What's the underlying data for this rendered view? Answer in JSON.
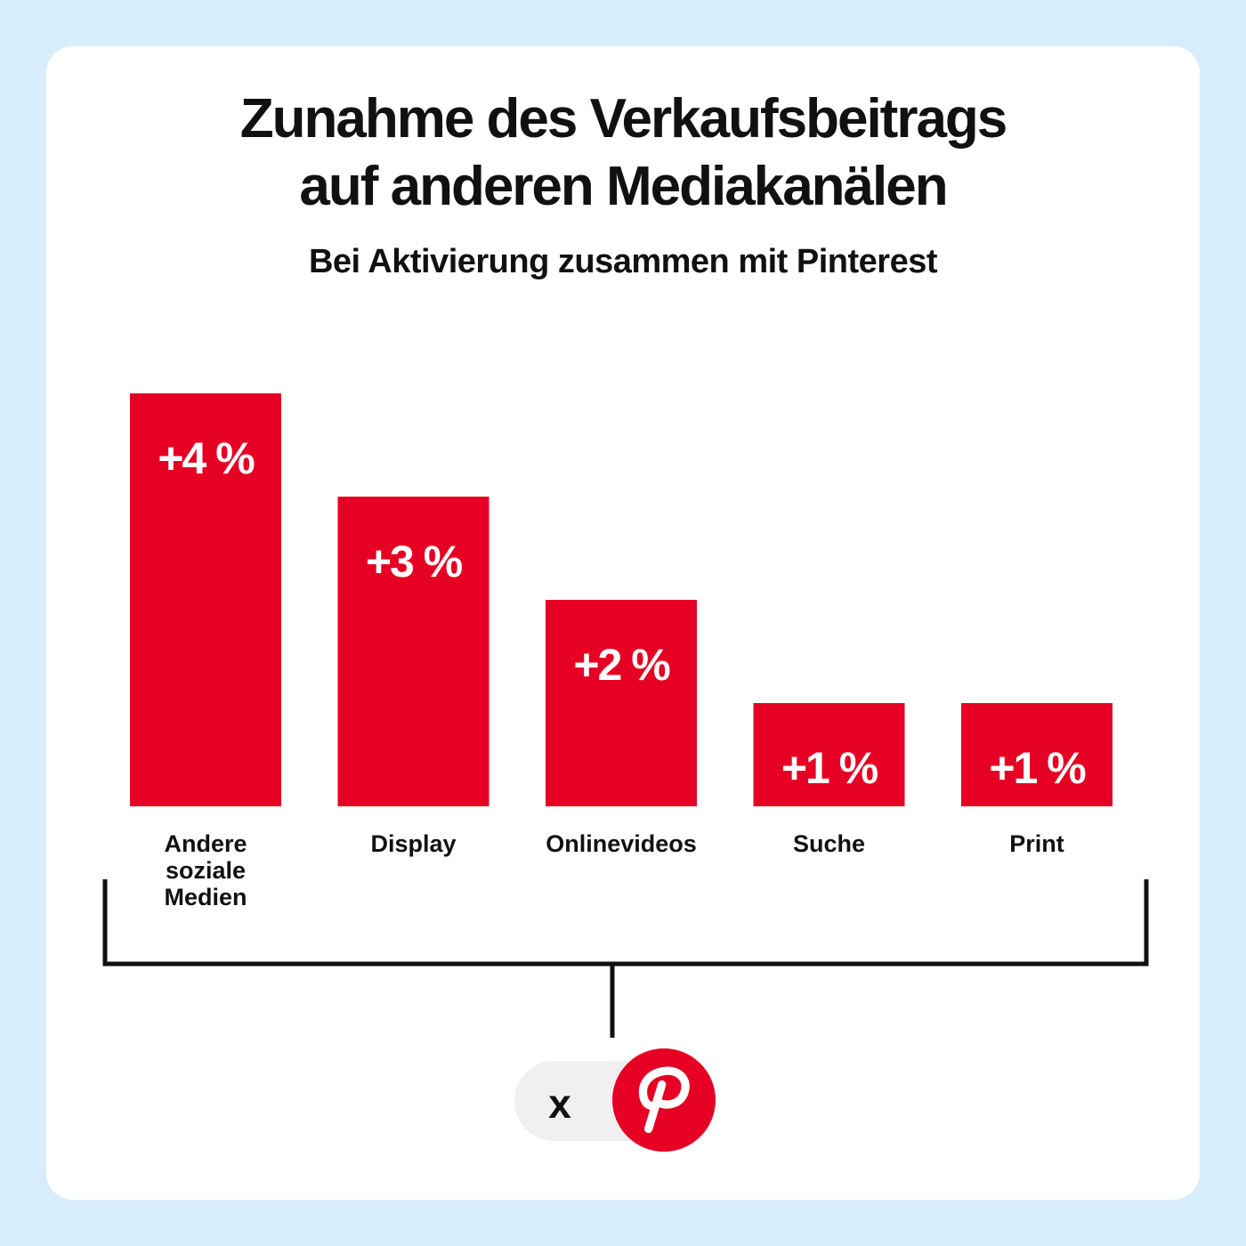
{
  "colors": {
    "background": "#d8edfc",
    "card": "#ffffff",
    "bar": "#e60023",
    "text": "#111111",
    "brand": "#e60023"
  },
  "chart_data": {
    "type": "bar",
    "title_lines": [
      "Zunahme des Verkaufsbeitrags",
      "auf anderen Mediakanälen"
    ],
    "subtitle": "Bei Aktivierung zusammen mit Pinterest",
    "categories": [
      [
        "Andere",
        "soziale",
        "Medien"
      ],
      [
        "Display"
      ],
      [
        "Onlinevideos"
      ],
      [
        "Suche"
      ],
      [
        "Print"
      ]
    ],
    "values": [
      4,
      3,
      2,
      1,
      1
    ],
    "value_labels": [
      "+4 %",
      "+3 %",
      "+2 %",
      "+1 %",
      "+1 %"
    ],
    "unit": "%",
    "ylim": [
      0,
      4
    ],
    "grid": false,
    "legend": "none"
  },
  "footer": {
    "multiplier": "x",
    "logo_icon": "pinterest-logo-icon"
  }
}
